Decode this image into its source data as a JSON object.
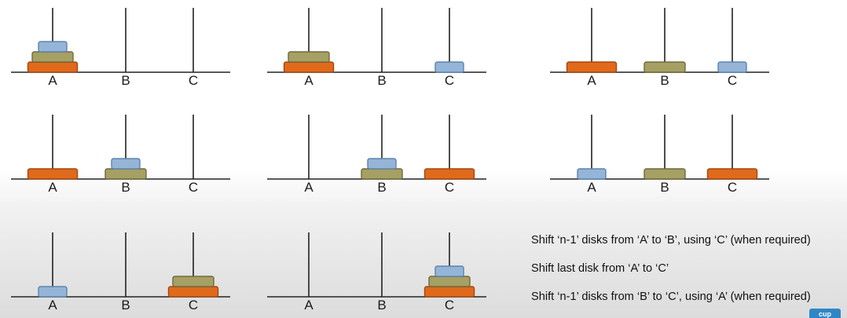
{
  "colors": {
    "large": {
      "fill": "#e06a1b",
      "stroke": "#a24710"
    },
    "medium": {
      "fill": "#a6a064",
      "stroke": "#6f6a3c"
    },
    "small": {
      "fill": "#95b5d8",
      "stroke": "#5c84ae"
    },
    "pole": "#222222"
  },
  "states": [
    {
      "pegs": {
        "A": [
          "large",
          "medium",
          "small"
        ],
        "B": [],
        "C": []
      },
      "labels": [
        "A",
        "B",
        "C"
      ]
    },
    {
      "pegs": {
        "A": [
          "large",
          "medium"
        ],
        "B": [],
        "C": [
          "small"
        ]
      },
      "labels": [
        "A",
        "B",
        "C"
      ]
    },
    {
      "pegs": {
        "A": [
          "large"
        ],
        "B": [
          "medium"
        ],
        "C": [
          "small"
        ]
      },
      "labels": [
        "A",
        "B",
        "C"
      ]
    },
    {
      "pegs": {
        "A": [
          "large"
        ],
        "B": [
          "medium",
          "small"
        ],
        "C": []
      },
      "labels": [
        "A",
        "B",
        "C"
      ]
    },
    {
      "pegs": {
        "A": [],
        "B": [
          "medium",
          "small"
        ],
        "C": [
          "large"
        ]
      },
      "labels": [
        "A",
        "B",
        "C"
      ]
    },
    {
      "pegs": {
        "A": [
          "small"
        ],
        "B": [
          "medium"
        ],
        "C": [
          "large"
        ]
      },
      "labels": [
        "A",
        "B",
        "C"
      ]
    },
    {
      "pegs": {
        "A": [
          "small"
        ],
        "B": [],
        "C": [
          "large",
          "medium"
        ]
      },
      "labels": [
        "A",
        "B",
        "C"
      ]
    },
    {
      "pegs": {
        "A": [],
        "B": [],
        "C": [
          "large",
          "medium",
          "small"
        ]
      },
      "labels": [
        "A",
        "B",
        "C"
      ]
    }
  ],
  "steps": [
    "Shift ‘n-1’ disks from ‘A’ to ‘B’, using ‘C’ (when required)",
    "Shift last disk from ‘A’ to ‘C’",
    "Shift ‘n-1’ disks from ‘B’ to ‘C’, using ‘A’ (when required)"
  ],
  "brand": "cup"
}
